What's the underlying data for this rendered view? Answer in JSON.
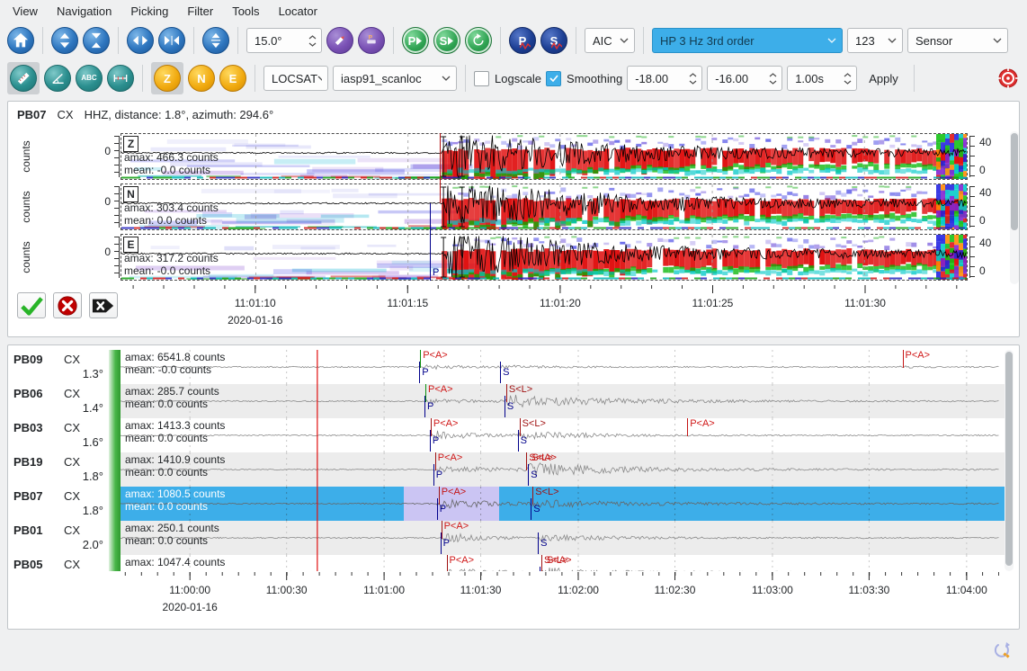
{
  "menu": {
    "items": [
      "View",
      "Navigation",
      "Picking",
      "Filter",
      "Tools",
      "Locator"
    ]
  },
  "toolbar1": {
    "angle_spin": "15.0°",
    "p_button": "P",
    "s_button": "S",
    "aic_combo": "AIC",
    "filter_combo": "HP 3 Hz 3rd order",
    "preset_combo": "123",
    "sensor_combo": "Sensor"
  },
  "toolbar2": {
    "component_z": "Z",
    "component_n": "N",
    "component_e": "E",
    "abc_tool": "ABC",
    "locator_combo": "LOCSAT",
    "profile_combo": "iasp91_scanloc",
    "logscale_label": "Logscale",
    "smoothing_label": "Smoothing",
    "min_spin": "-18.00",
    "max_spin": "-16.00",
    "time_spin": "1.00s",
    "apply_button": "Apply"
  },
  "picker": {
    "station": "PB07",
    "network": "CX",
    "meta": "HHZ, distance: 1.8°, azimuth: 294.6°",
    "ylabel": "counts",
    "zero_label": "0",
    "freq_top": "40",
    "freq_bottom": "0",
    "p_label": "P",
    "channels": [
      {
        "label": "Z",
        "amax": "amax: 466.3 counts",
        "mean": "mean: -0.0 counts"
      },
      {
        "label": "N",
        "amax": "amax: 303.4 counts",
        "mean": "mean: 0.0 counts"
      },
      {
        "label": "E",
        "amax": "amax: 317.2 counts",
        "mean": "mean: -0.0 counts"
      }
    ],
    "onset_f": 0.379,
    "bracket_fracs": [
      0.381,
      0.403
    ],
    "auto_line_f": 0.378,
    "manual_line_f": 0.366,
    "axis": {
      "ticks": [
        "11:01:10",
        "11:01:15",
        "11:01:20",
        "11:01:25",
        "11:01:30"
      ],
      "fracs": [
        0.159,
        0.339,
        0.519,
        0.699,
        0.879
      ],
      "date": "2020-01-16",
      "minor_start": 0.015,
      "minor_step": 0.036
    }
  },
  "traces": {
    "origin_f": 0.224,
    "axis": {
      "ticks": [
        "11:00:00",
        "11:00:30",
        "11:01:00",
        "11:01:30",
        "11:02:00",
        "11:02:30",
        "11:03:00",
        "11:03:30",
        "11:04:00"
      ],
      "fracs": [
        0.079,
        0.189,
        0.3,
        0.41,
        0.521,
        0.631,
        0.742,
        0.852,
        0.963
      ],
      "date": "2020-01-16",
      "minor_start": 0.0054,
      "minor_step": 0.01841
    },
    "rows": [
      {
        "station": "PB09",
        "network": "CX",
        "distance": "1.3°",
        "amax": "amax: 6541.8 counts",
        "mean": "mean: -0.0 counts",
        "selected": false,
        "markers": [
          {
            "f": 0.341,
            "color": "#0d8f0d",
            "label": "P<A>",
            "lc": "#d01818",
            "pos": "top"
          },
          {
            "f": 0.34,
            "color": "#00008b",
            "label": "P",
            "lc": "#00008b",
            "pos": "bottom"
          },
          {
            "f": 0.432,
            "color": "#00008b",
            "label": "S",
            "lc": "#00008b",
            "pos": "bottom"
          },
          {
            "f": 0.89,
            "color": "#c41414",
            "label": "P<A>",
            "lc": "#d01818",
            "pos": "top"
          }
        ],
        "bursts": [
          {
            "f": 0.341,
            "amp": 2.6,
            "dec": 0.05
          },
          {
            "f": 0.432,
            "amp": 1.6,
            "dec": 0.06
          },
          {
            "f": 0.885,
            "amp": 1.2,
            "dec": 0.02
          }
        ]
      },
      {
        "station": "PB06",
        "network": "CX",
        "distance": "1.4°",
        "amax": "amax: 285.7 counts",
        "mean": "mean: 0.0 counts",
        "selected": false,
        "markers": [
          {
            "f": 0.347,
            "color": "#0d8f0d",
            "label": "P<A>",
            "lc": "#d01818",
            "pos": "top"
          },
          {
            "f": 0.346,
            "color": "#00008b",
            "label": "P",
            "lc": "#00008b",
            "pos": "bottom"
          },
          {
            "f": 0.439,
            "color": "#a01212",
            "label": "S<L>",
            "lc": "#a01212",
            "pos": "top"
          },
          {
            "f": 0.437,
            "color": "#00008b",
            "label": "S",
            "lc": "#00008b",
            "pos": "bottom"
          }
        ],
        "bursts": [
          {
            "f": 0.347,
            "amp": 2.2,
            "dec": 0.07
          },
          {
            "f": 0.437,
            "amp": 6.5,
            "dec": 0.13
          }
        ]
      },
      {
        "station": "PB03",
        "network": "CX",
        "distance": "1.6°",
        "amax": "amax: 1413.3 counts",
        "mean": "mean: 0.0 counts",
        "selected": false,
        "markers": [
          {
            "f": 0.353,
            "color": "#a01212",
            "label": "P<A>",
            "lc": "#d01818",
            "pos": "top"
          },
          {
            "f": 0.352,
            "color": "#00008b",
            "label": "P",
            "lc": "#00008b",
            "pos": "bottom"
          },
          {
            "f": 0.454,
            "color": "#a01212",
            "label": "S<L>",
            "lc": "#a01212",
            "pos": "top"
          },
          {
            "f": 0.452,
            "color": "#00008b",
            "label": "S",
            "lc": "#00008b",
            "pos": "bottom"
          },
          {
            "f": 0.645,
            "color": "#c41414",
            "label": "P<A>",
            "lc": "#d01818",
            "pos": "top"
          }
        ],
        "bursts": [
          {
            "f": 0.352,
            "amp": 5.5,
            "dec": 0.05
          },
          {
            "f": 0.452,
            "amp": 4.5,
            "dec": 0.08
          }
        ]
      },
      {
        "station": "PB19",
        "network": "CX",
        "distance": "1.8°",
        "amax": "amax: 1410.9 counts",
        "mean": "mean: 0.0 counts",
        "selected": false,
        "markers": [
          {
            "f": 0.358,
            "color": "#a01212",
            "label": "P<A>",
            "lc": "#d01818",
            "pos": "top"
          },
          {
            "f": 0.356,
            "color": "#00008b",
            "label": "P",
            "lc": "#00008b",
            "pos": "bottom"
          },
          {
            "f": 0.462,
            "color": "#a01212",
            "label": "S<L>",
            "label2": "S<A>",
            "lc": "#c41414",
            "pos": "top"
          },
          {
            "f": 0.464,
            "color": "#00008b",
            "label": "S",
            "lc": "#00008b",
            "pos": "bottom"
          }
        ],
        "bursts": [
          {
            "f": 0.356,
            "amp": 2.8,
            "dec": 0.18
          },
          {
            "f": 0.462,
            "amp": 6.5,
            "dec": 0.1
          }
        ]
      },
      {
        "station": "PB07",
        "network": "CX",
        "distance": "1.8°",
        "amax": "amax: 1080.5 counts",
        "mean": "mean: 0.0 counts",
        "selected": true,
        "selection": [
          0.322,
          0.43
        ],
        "markers": [
          {
            "f": 0.362,
            "color": "#a01212",
            "label": "P<A>",
            "lc": "#c41414",
            "pos": "top"
          },
          {
            "f": 0.36,
            "color": "#00008b",
            "label": "P",
            "lc": "#00008b",
            "pos": "bottom"
          },
          {
            "f": 0.469,
            "color": "#a01212",
            "label": "S<L>",
            "lc": "#a01212",
            "pos": "top"
          },
          {
            "f": 0.467,
            "color": "#00008b",
            "label": "S",
            "lc": "#00008b",
            "pos": "bottom"
          }
        ],
        "bursts": [
          {
            "f": 0.36,
            "amp": 6.5,
            "dec": 0.06
          },
          {
            "f": 0.467,
            "amp": 3.5,
            "dec": 0.15
          }
        ]
      },
      {
        "station": "PB01",
        "network": "CX",
        "distance": "2.0°",
        "amax": "amax: 250.1 counts",
        "mean": "mean: 0.0 counts",
        "selected": false,
        "markers": [
          {
            "f": 0.365,
            "color": "#a01212",
            "label": "P<A>",
            "lc": "#d01818",
            "pos": "top"
          },
          {
            "f": 0.364,
            "color": "#00008b",
            "label": "P",
            "lc": "#00008b",
            "pos": "bottom"
          },
          {
            "f": 0.475,
            "color": "#00008b",
            "label": "S",
            "lc": "#00008b",
            "pos": "bottom"
          }
        ],
        "bursts": [
          {
            "f": 0.364,
            "amp": 7.0,
            "dec": 0.04
          },
          {
            "f": 0.475,
            "amp": 3.2,
            "dec": 0.1
          }
        ]
      },
      {
        "station": "PB05",
        "network": "CX",
        "distance": "",
        "amax": "amax: 1047.4 counts",
        "mean": "",
        "selected": false,
        "markers": [
          {
            "f": 0.371,
            "color": "#a01212",
            "label": "P<A>",
            "lc": "#d01818",
            "pos": "top"
          },
          {
            "f": 0.479,
            "color": "#a01212",
            "label": "S<L>",
            "label2": "S<A>",
            "lc": "#c41414",
            "pos": "top"
          },
          {
            "f": 0.477,
            "color": "#00008b",
            "label": "S",
            "lc": "#00008b",
            "pos": "bottom"
          }
        ],
        "bursts": [
          {
            "f": 0.37,
            "amp": 5.0,
            "dec": 0.05
          },
          {
            "f": 0.477,
            "amp": 4.5,
            "dec": 0.08
          }
        ]
      }
    ]
  }
}
